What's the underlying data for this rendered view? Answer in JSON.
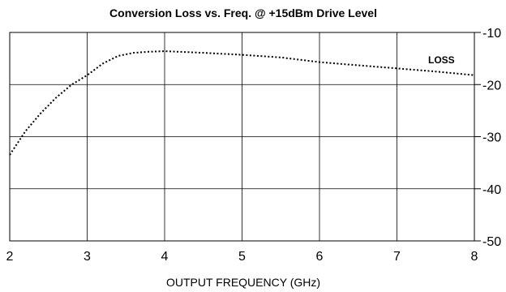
{
  "chart_data": {
    "type": "line",
    "title": "Conversion Loss  vs. Freq. @   +15dBm Drive Level",
    "xlabel": "OUTPUT FREQUENCY (GHz)",
    "ylabel": "",
    "xlim": [
      2,
      8
    ],
    "ylim": [
      -50,
      -10
    ],
    "x_ticks": [
      "2",
      "3",
      "4",
      "5",
      "6",
      "7",
      "8"
    ],
    "y_ticks": [
      "-10",
      "-20",
      "-30",
      "-40",
      "-50"
    ],
    "grid": true,
    "series": [
      {
        "name": "LOSS",
        "style": "dotted",
        "x": [
          2.0,
          2.2,
          2.4,
          2.6,
          2.8,
          3.0,
          3.2,
          3.4,
          3.6,
          3.8,
          4.0,
          4.5,
          5.0,
          5.5,
          6.0,
          6.5,
          7.0,
          7.5,
          8.0
        ],
        "y": [
          -33.5,
          -29.0,
          -25.5,
          -22.5,
          -20.0,
          -18.2,
          -16.0,
          -14.5,
          -13.9,
          -13.7,
          -13.6,
          -13.9,
          -14.3,
          -14.8,
          -15.7,
          -16.3,
          -16.9,
          -17.5,
          -18.2
        ]
      }
    ]
  }
}
